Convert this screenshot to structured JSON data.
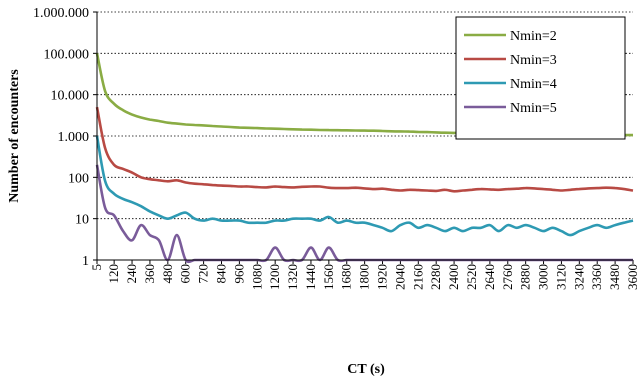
{
  "chart_data": {
    "type": "line",
    "title": "",
    "xlabel": "CT (s)",
    "ylabel": "Number of encounters",
    "yscale": "log",
    "ylim": [
      1,
      1000000
    ],
    "xlim": [
      5,
      3600
    ],
    "grid": "horizontal dotted",
    "legend_position": "top-right",
    "y_tick_labels": [
      "1",
      "10",
      "100",
      "1.000",
      "10.000",
      "100.000",
      "1.000.000"
    ],
    "x_tick_labels": [
      "5",
      "120",
      "240",
      "360",
      "480",
      "600",
      "720",
      "840",
      "960",
      "1080",
      "1200",
      "1320",
      "1440",
      "1560",
      "1680",
      "1800",
      "1920",
      "2040",
      "2160",
      "2280",
      "2400",
      "2520",
      "2640",
      "2760",
      "2880",
      "3000",
      "3120",
      "3240",
      "3360",
      "3480",
      "3600"
    ],
    "x": [
      5,
      60,
      120,
      180,
      240,
      300,
      360,
      420,
      480,
      540,
      600,
      660,
      720,
      780,
      840,
      900,
      960,
      1020,
      1080,
      1140,
      1200,
      1260,
      1320,
      1380,
      1440,
      1500,
      1560,
      1620,
      1680,
      1740,
      1800,
      1860,
      1920,
      1980,
      2040,
      2100,
      2160,
      2220,
      2280,
      2340,
      2400,
      2460,
      2520,
      2580,
      2640,
      2700,
      2760,
      2820,
      2880,
      2940,
      3000,
      3060,
      3120,
      3180,
      3240,
      3300,
      3360,
      3420,
      3480,
      3540,
      3600
    ],
    "series": [
      {
        "name": "Nmin=2",
        "color": "#8aac44",
        "values": [
          100000,
          12000,
          6000,
          4200,
          3300,
          2800,
          2500,
          2300,
          2100,
          2000,
          1900,
          1850,
          1800,
          1750,
          1700,
          1650,
          1600,
          1580,
          1550,
          1520,
          1500,
          1480,
          1450,
          1430,
          1420,
          1400,
          1390,
          1380,
          1370,
          1360,
          1350,
          1340,
          1320,
          1300,
          1290,
          1280,
          1260,
          1240,
          1220,
          1200,
          1190,
          1180,
          1170,
          1160,
          1150,
          1150,
          1140,
          1130,
          1120,
          1120,
          1110,
          1100,
          1100,
          1090,
          1090,
          1080,
          1080,
          1070,
          1070,
          1060,
          1050
        ]
      },
      {
        "name": "Nmin=3",
        "color": "#b84a44",
        "values": [
          5000,
          500,
          200,
          160,
          130,
          100,
          90,
          85,
          80,
          85,
          75,
          70,
          68,
          65,
          63,
          62,
          60,
          60,
          58,
          57,
          60,
          58,
          57,
          59,
          60,
          60,
          56,
          55,
          55,
          56,
          54,
          52,
          53,
          50,
          48,
          50,
          49,
          48,
          47,
          50,
          46,
          48,
          50,
          52,
          51,
          50,
          52,
          53,
          55,
          54,
          52,
          50,
          48,
          50,
          52,
          54,
          55,
          56,
          55,
          52,
          48
        ]
      },
      {
        "name": "Nmin=4",
        "color": "#2e9ab3",
        "values": [
          1000,
          80,
          40,
          30,
          25,
          20,
          15,
          12,
          10,
          12,
          14,
          10,
          9,
          10,
          9,
          9,
          9,
          8,
          8,
          8,
          9,
          9,
          10,
          10,
          10,
          9,
          11,
          8,
          9,
          8,
          8,
          7,
          6,
          5,
          7,
          8,
          6,
          7,
          6,
          5,
          6,
          5,
          6,
          6,
          7,
          5,
          7,
          6,
          7,
          6,
          5,
          6,
          5,
          4,
          5,
          6,
          7,
          6,
          7,
          8,
          9
        ]
      },
      {
        "name": "Nmin=5",
        "color": "#7a5c9a",
        "values": [
          200,
          18,
          12,
          5,
          3,
          7,
          4,
          3,
          1,
          4,
          1,
          1,
          1,
          1,
          1,
          1,
          1,
          1,
          1,
          1,
          2,
          1,
          1,
          1,
          2,
          1,
          2,
          1,
          1,
          1,
          1,
          1,
          1,
          1,
          1,
          1,
          1,
          1,
          1,
          1,
          1,
          1,
          1,
          1,
          1,
          1,
          1,
          1,
          1,
          1,
          1,
          1,
          1,
          1,
          1,
          1,
          1,
          1,
          1,
          1,
          1
        ]
      }
    ]
  }
}
